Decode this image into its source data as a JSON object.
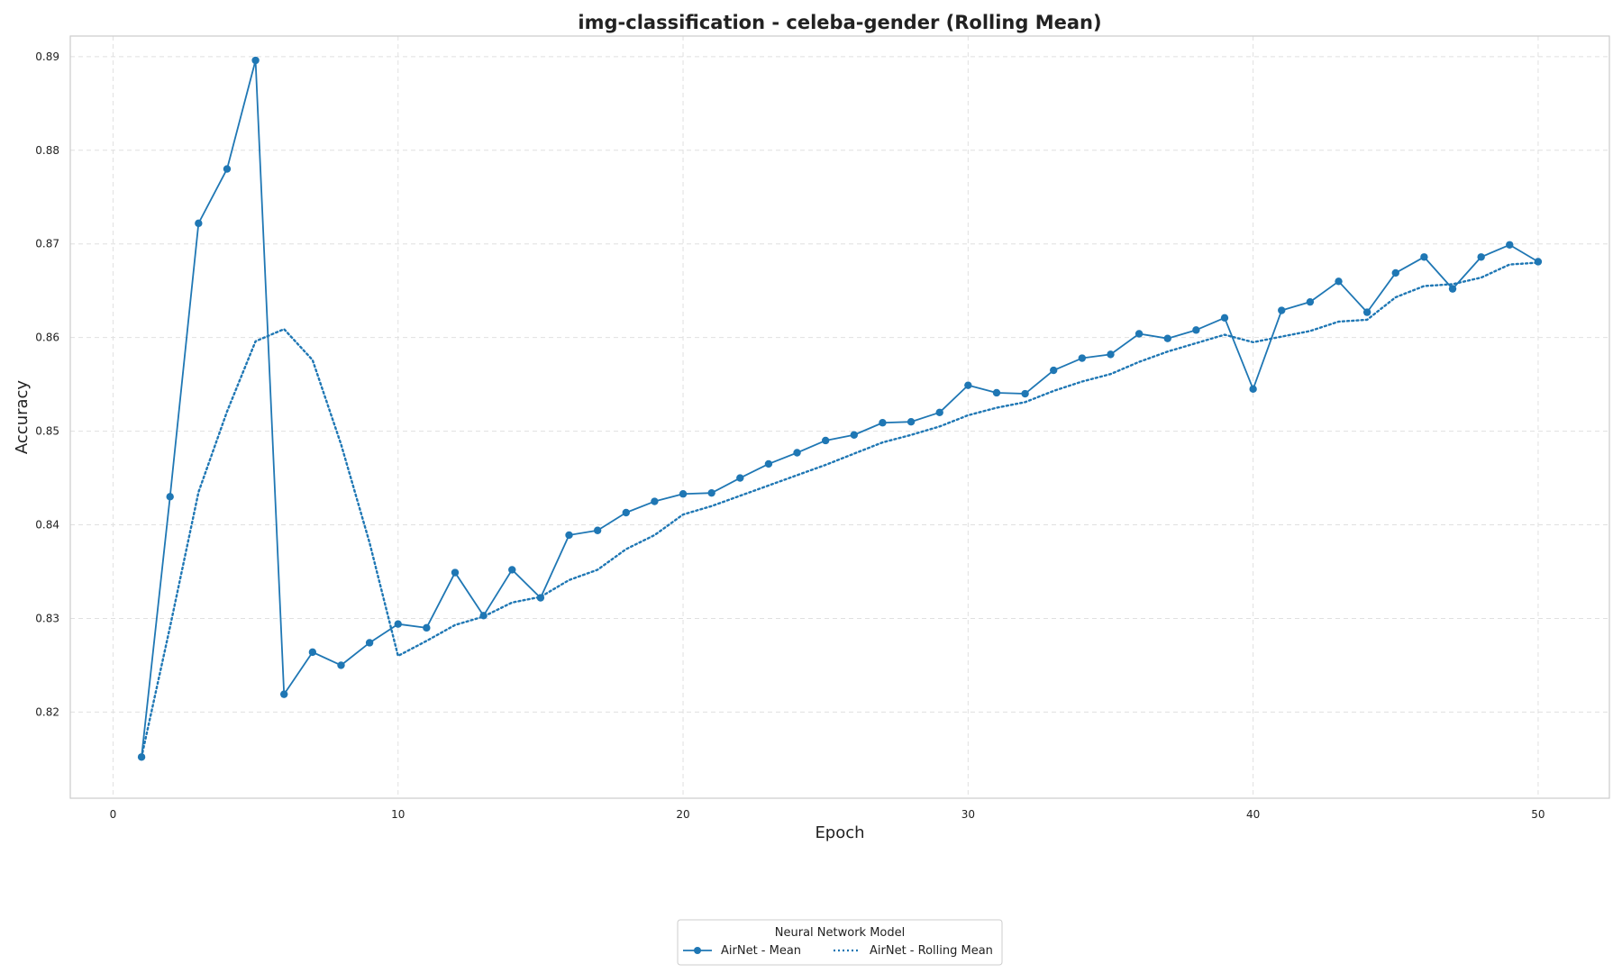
{
  "chart_data": {
    "type": "line",
    "title": "img-classification - celeba-gender (Rolling Mean)",
    "xlabel": "Epoch",
    "ylabel": "Accuracy",
    "xlim": [
      -1.5,
      52.5
    ],
    "ylim": [
      0.8108,
      0.8922
    ],
    "xticks": [
      0,
      10,
      20,
      30,
      40,
      50
    ],
    "yticks": [
      0.82,
      0.83,
      0.84,
      0.85,
      0.86,
      0.87,
      0.88,
      0.89
    ],
    "grid": true,
    "x": [
      1,
      2,
      3,
      4,
      5,
      6,
      7,
      8,
      9,
      10,
      11,
      12,
      13,
      14,
      15,
      16,
      17,
      18,
      19,
      20,
      21,
      22,
      23,
      24,
      25,
      26,
      27,
      28,
      29,
      30,
      31,
      32,
      33,
      34,
      35,
      36,
      37,
      38,
      39,
      40,
      41,
      42,
      43,
      44,
      45,
      46,
      47,
      48,
      49,
      50
    ],
    "series": [
      {
        "name": "AirNet - Mean",
        "color": "#1f77b4",
        "style": "solid",
        "marker": "circle",
        "values": [
          0.8152,
          0.843,
          0.8722,
          0.878,
          0.8896,
          0.8219,
          0.8264,
          0.825,
          0.8274,
          0.8294,
          0.829,
          0.8349,
          0.8303,
          0.8352,
          0.8322,
          0.8389,
          0.8394,
          0.8413,
          0.8425,
          0.8433,
          0.8434,
          0.845,
          0.8465,
          0.8477,
          0.849,
          0.8496,
          0.8509,
          0.851,
          0.852,
          0.8549,
          0.8541,
          0.854,
          0.8565,
          0.8578,
          0.8582,
          0.8604,
          0.8599,
          0.8608,
          0.8621,
          0.8545,
          0.8629,
          0.8638,
          0.866,
          0.8627,
          0.8669,
          0.8686,
          0.8652,
          0.8686,
          0.8699,
          0.8681
        ]
      },
      {
        "name": "AirNet - Rolling Mean",
        "color": "#1f77b4",
        "style": "dotted",
        "marker": "none",
        "values": [
          0.8152,
          0.8291,
          0.8435,
          0.8521,
          0.8596,
          0.8609,
          0.8576,
          0.8486,
          0.8381,
          0.826,
          0.8276,
          0.8293,
          0.8302,
          0.8317,
          0.8323,
          0.8341,
          0.8352,
          0.8374,
          0.8389,
          0.8411,
          0.842,
          0.8431,
          0.8442,
          0.8453,
          0.8464,
          0.8476,
          0.8488,
          0.8496,
          0.8505,
          0.8517,
          0.8525,
          0.8531,
          0.8543,
          0.8553,
          0.8561,
          0.8574,
          0.8585,
          0.8594,
          0.8603,
          0.8595,
          0.8601,
          0.8607,
          0.8617,
          0.8619,
          0.8643,
          0.8655,
          0.8657,
          0.8664,
          0.8678,
          0.868
        ]
      }
    ],
    "legend": {
      "title": "Neural Network Model",
      "placement": "bottom-center"
    }
  }
}
